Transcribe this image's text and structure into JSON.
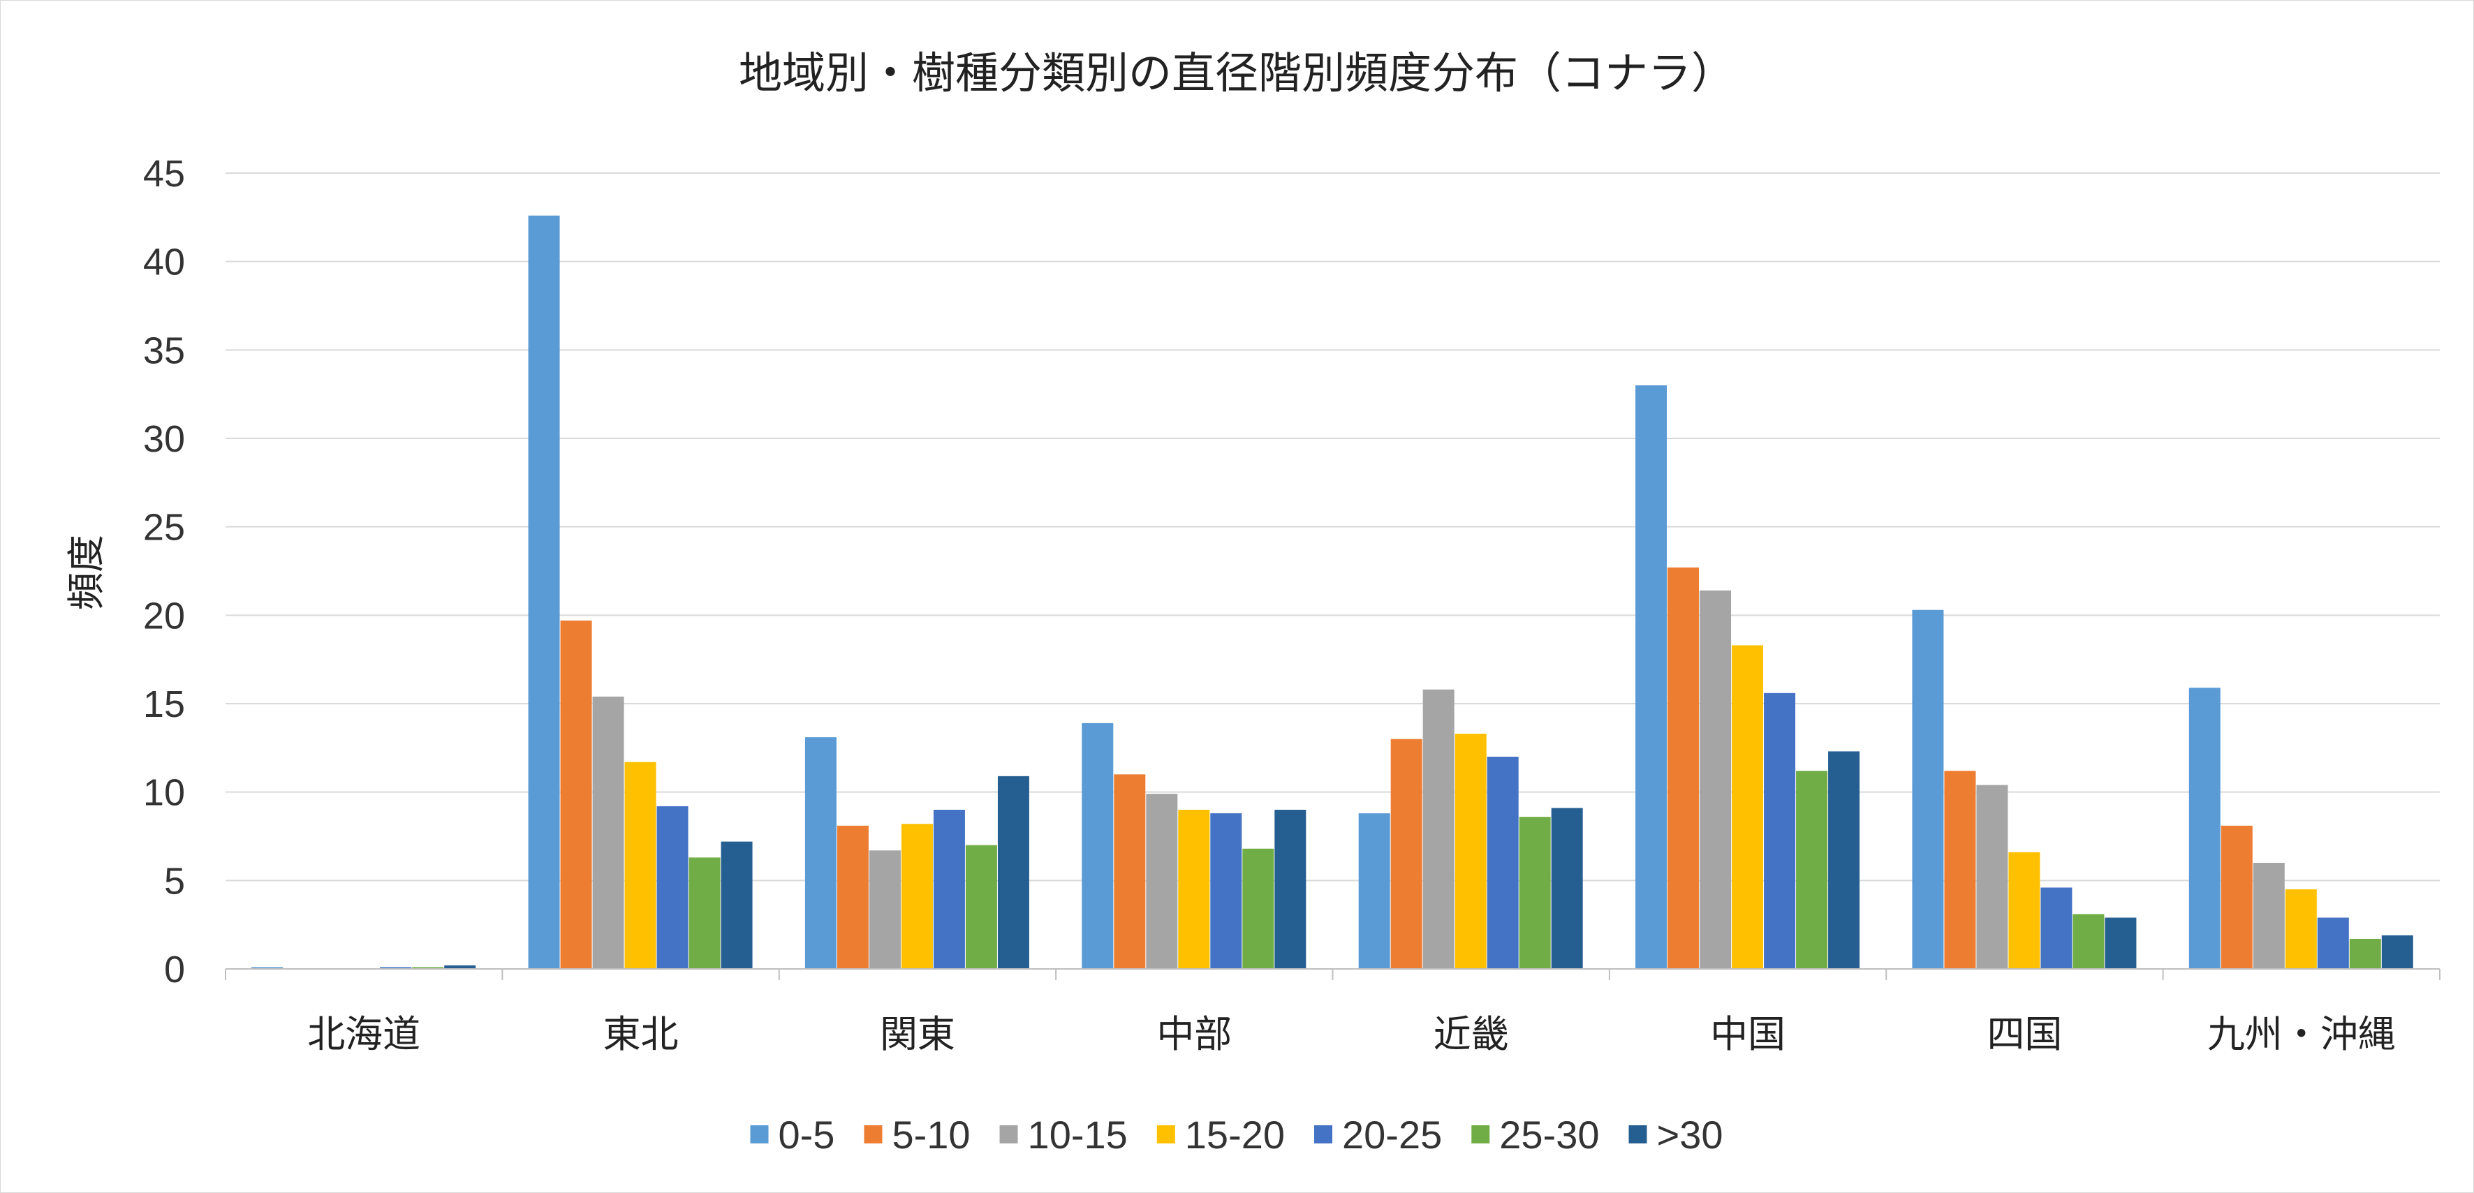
{
  "chart_data": {
    "type": "bar",
    "title": "地域別・樹種分類別の直径階別頻度分布（コナラ）",
    "xlabel": "",
    "ylabel": "頻度",
    "ylim": [
      0,
      45
    ],
    "yticks": [
      0,
      5,
      10,
      15,
      20,
      25,
      30,
      35,
      40,
      45
    ],
    "grid": true,
    "legend_position": "bottom",
    "categories": [
      "北海道",
      "東北",
      "関東",
      "中部",
      "近畿",
      "中国",
      "四国",
      "九州・沖縄"
    ],
    "series": [
      {
        "name": "0-5",
        "color": "#5B9BD5",
        "values": [
          0.1,
          42.6,
          13.1,
          13.9,
          8.8,
          33.0,
          20.3,
          15.9
        ]
      },
      {
        "name": "5-10",
        "color": "#ED7D31",
        "values": [
          0.0,
          19.7,
          8.1,
          11.0,
          13.0,
          22.7,
          11.2,
          8.1
        ]
      },
      {
        "name": "10-15",
        "color": "#A5A5A5",
        "values": [
          0.0,
          15.4,
          6.7,
          9.9,
          15.8,
          21.4,
          10.4,
          6.0
        ]
      },
      {
        "name": "15-20",
        "color": "#FFC000",
        "values": [
          0.0,
          11.7,
          8.2,
          9.0,
          13.3,
          18.3,
          6.6,
          4.5
        ]
      },
      {
        "name": "20-25",
        "color": "#4472C4",
        "values": [
          0.1,
          9.2,
          9.0,
          8.8,
          12.0,
          15.6,
          4.6,
          2.9
        ]
      },
      {
        "name": "25-30",
        "color": "#70AD47",
        "values": [
          0.1,
          6.3,
          7.0,
          6.8,
          8.6,
          11.2,
          3.1,
          1.7
        ]
      },
      {
        "name": ">30",
        "color": "#255E91",
        "values": [
          0.2,
          7.2,
          10.9,
          9.0,
          9.1,
          12.3,
          2.9,
          1.9
        ]
      }
    ],
    "gridline_color": "#d9d9d9",
    "axis_color": "#bfbfbf"
  }
}
